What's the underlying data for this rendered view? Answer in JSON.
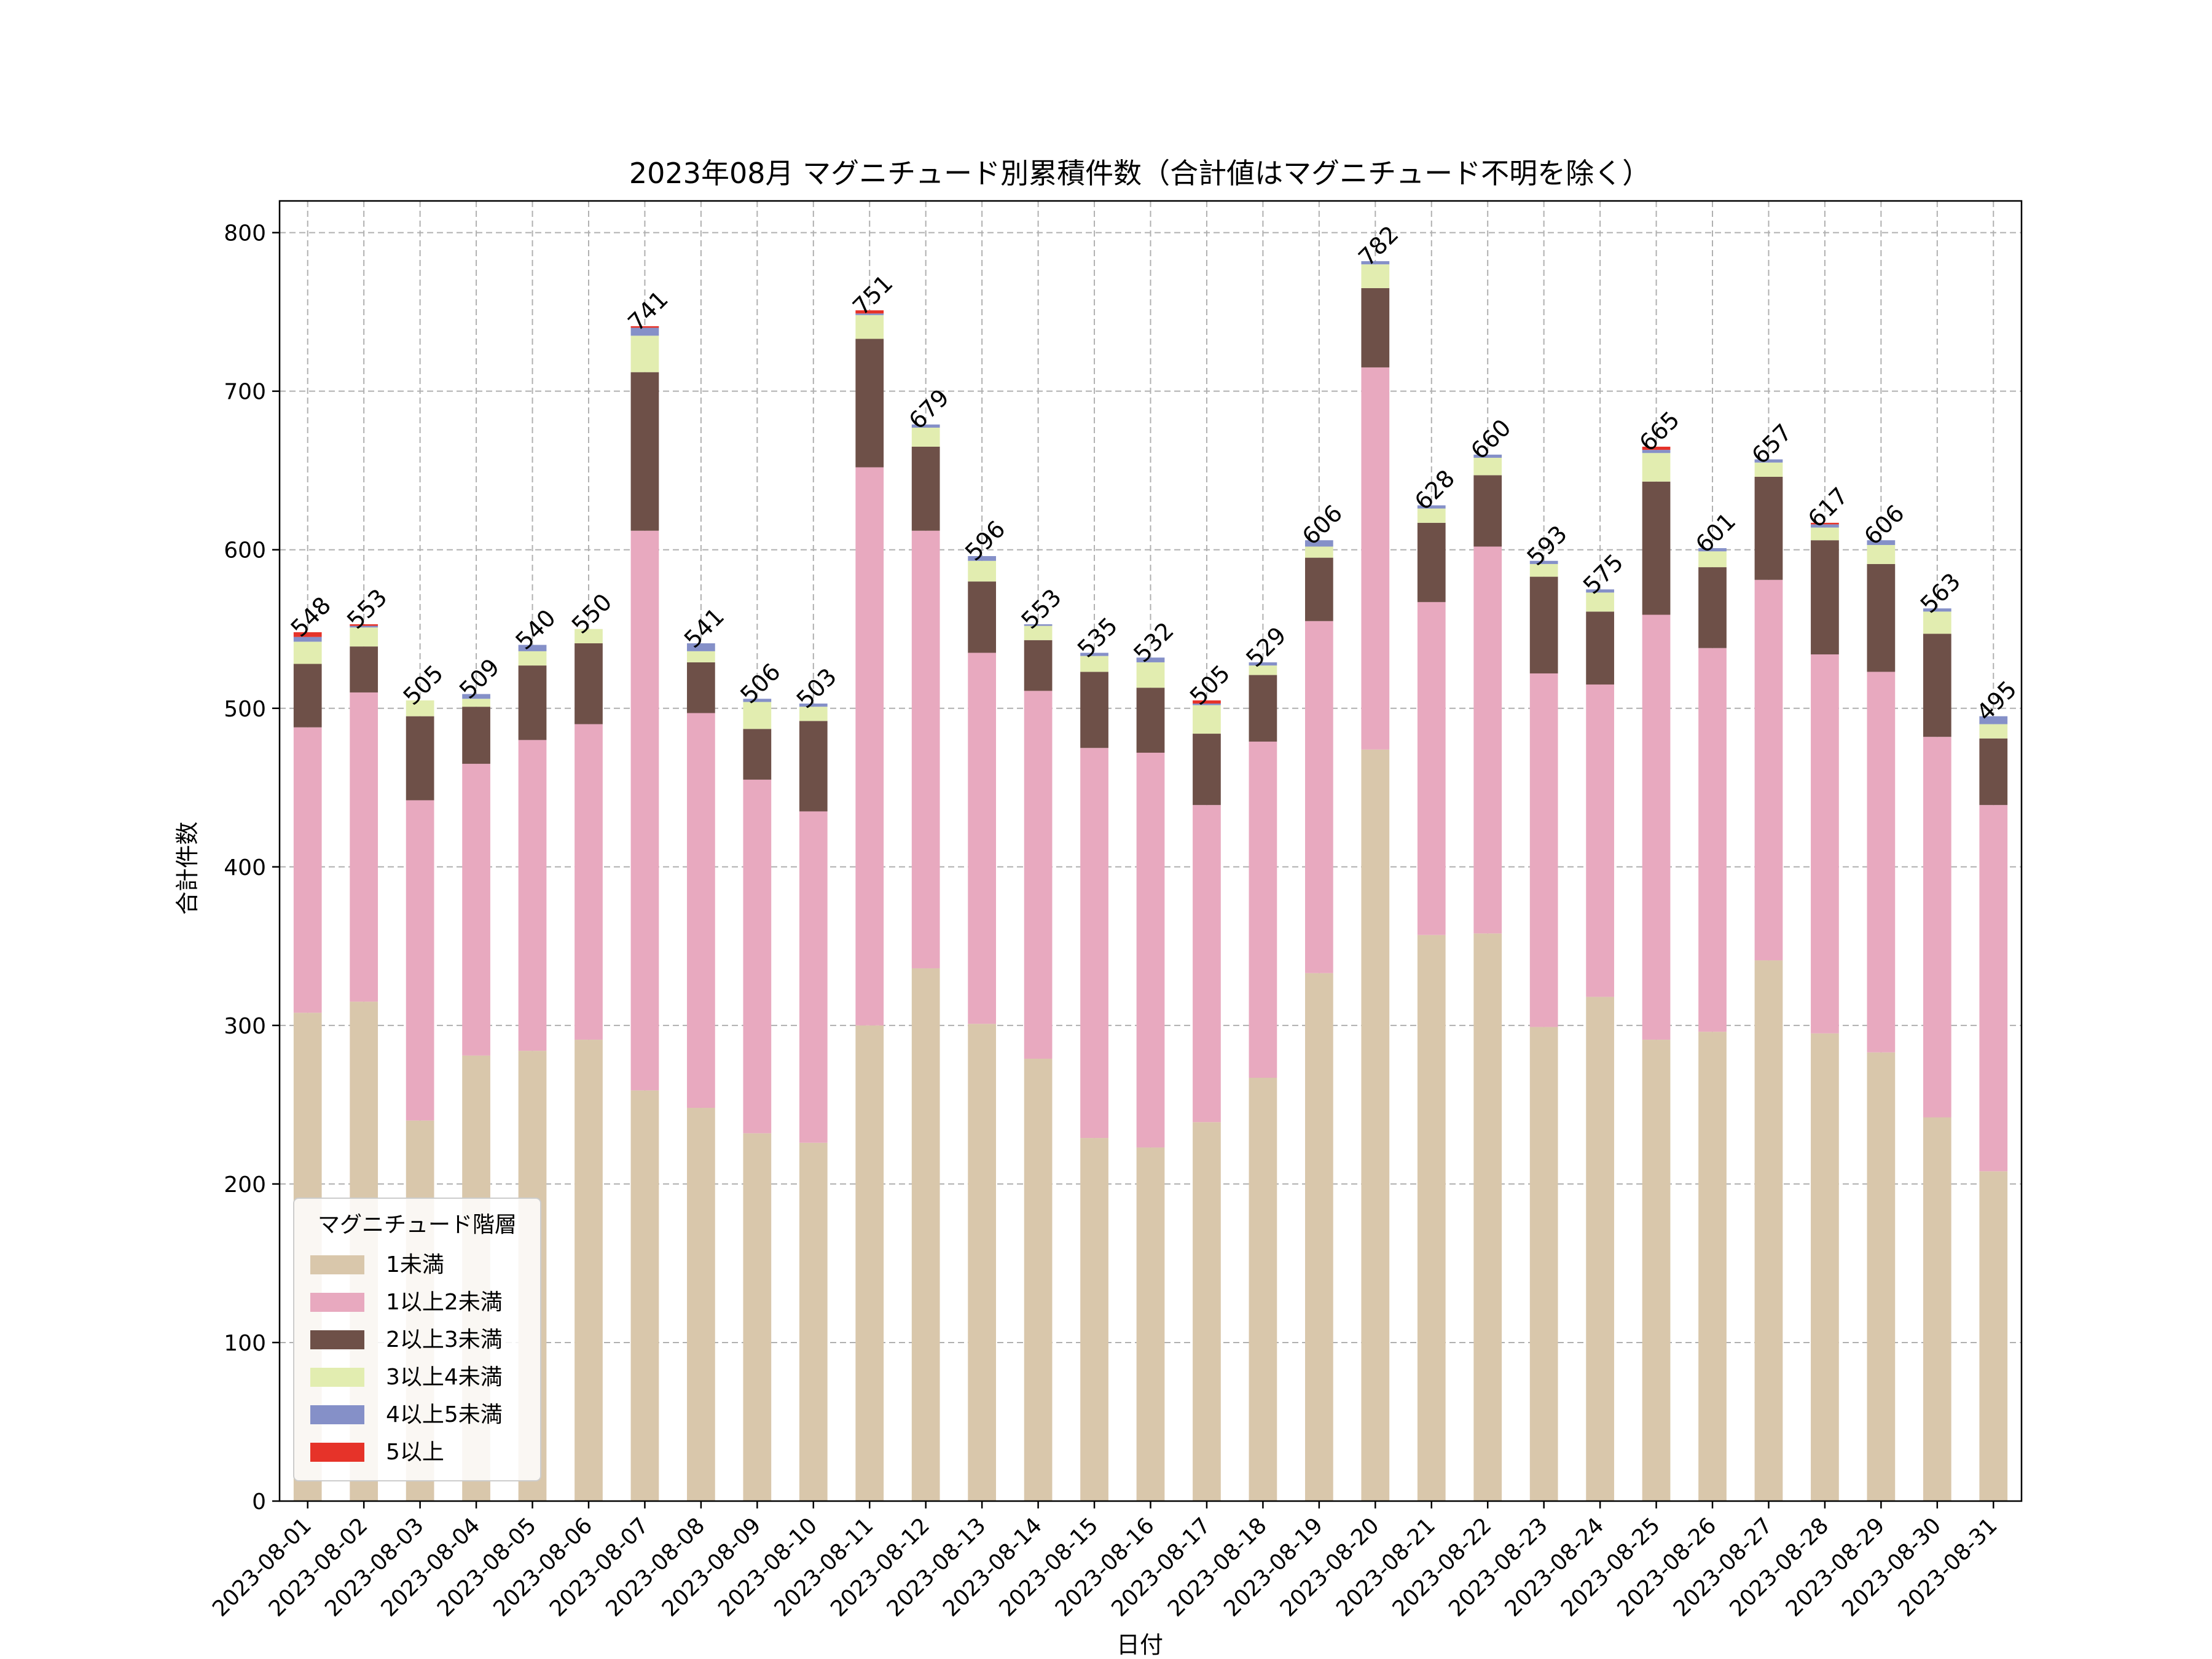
{
  "chart_data": {
    "type": "bar",
    "stacked": true,
    "title": "2023年08月 マグニチュード別累積件数（合計値はマグニチュード不明を除く）",
    "xlabel": "日付",
    "ylabel": "合計件数",
    "ylim": [
      0,
      820
    ],
    "yticks": [
      0,
      100,
      200,
      300,
      400,
      500,
      600,
      700,
      800
    ],
    "grid": true,
    "legend_title": "マグニチュード階層",
    "legend_position": "lower-left",
    "categories": [
      "2023-08-01",
      "2023-08-02",
      "2023-08-03",
      "2023-08-04",
      "2023-08-05",
      "2023-08-06",
      "2023-08-07",
      "2023-08-08",
      "2023-08-09",
      "2023-08-10",
      "2023-08-11",
      "2023-08-12",
      "2023-08-13",
      "2023-08-14",
      "2023-08-15",
      "2023-08-16",
      "2023-08-17",
      "2023-08-18",
      "2023-08-19",
      "2023-08-20",
      "2023-08-21",
      "2023-08-22",
      "2023-08-23",
      "2023-08-24",
      "2023-08-25",
      "2023-08-26",
      "2023-08-27",
      "2023-08-28",
      "2023-08-29",
      "2023-08-30",
      "2023-08-31"
    ],
    "series": [
      {
        "name": "1未満",
        "color": "#d9c7ab",
        "values": [
          308,
          315,
          240,
          281,
          284,
          291,
          259,
          248,
          232,
          226,
          300,
          336,
          301,
          279,
          229,
          223,
          239,
          267,
          333,
          474,
          357,
          358,
          299,
          318,
          291,
          296,
          341,
          295,
          283,
          242,
          208
        ]
      },
      {
        "name": "1以上2未満",
        "color": "#e8a9bf",
        "values": [
          180,
          195,
          202,
          184,
          196,
          199,
          353,
          249,
          223,
          209,
          352,
          276,
          234,
          232,
          246,
          249,
          200,
          212,
          222,
          241,
          210,
          244,
          223,
          197,
          268,
          242,
          240,
          239,
          240,
          240,
          231
        ]
      },
      {
        "name": "2以上3未満",
        "color": "#6e5048",
        "values": [
          40,
          29,
          53,
          36,
          47,
          51,
          100,
          32,
          32,
          57,
          81,
          53,
          45,
          32,
          48,
          41,
          45,
          42,
          40,
          50,
          50,
          45,
          61,
          46,
          84,
          51,
          65,
          72,
          68,
          65,
          42
        ]
      },
      {
        "name": "3以上4未満",
        "color": "#e2edb0",
        "values": [
          14,
          12,
          10,
          5,
          9,
          9,
          23,
          7,
          17,
          9,
          15,
          12,
          13,
          9,
          10,
          16,
          18,
          6,
          7,
          15,
          9,
          11,
          8,
          12,
          18,
          10,
          9,
          8,
          12,
          14,
          9
        ]
      },
      {
        "name": "4以上5未満",
        "color": "#8590c8",
        "values": [
          3,
          1,
          0,
          3,
          4,
          0,
          5,
          5,
          2,
          2,
          1,
          2,
          3,
          1,
          2,
          3,
          1,
          2,
          4,
          2,
          2,
          2,
          2,
          2,
          2,
          2,
          2,
          2,
          3,
          2,
          5
        ]
      },
      {
        "name": "5以上",
        "color": "#e63329",
        "values": [
          3,
          1,
          0,
          0,
          0,
          0,
          1,
          0,
          0,
          0,
          2,
          0,
          0,
          0,
          0,
          0,
          2,
          0,
          0,
          0,
          0,
          0,
          0,
          0,
          2,
          0,
          0,
          1,
          0,
          0,
          0
        ]
      }
    ],
    "totals": [
      548,
      553,
      505,
      509,
      540,
      550,
      741,
      541,
      506,
      503,
      751,
      679,
      596,
      553,
      535,
      532,
      505,
      529,
      606,
      782,
      628,
      660,
      593,
      575,
      665,
      601,
      657,
      617,
      606,
      563,
      495
    ]
  }
}
